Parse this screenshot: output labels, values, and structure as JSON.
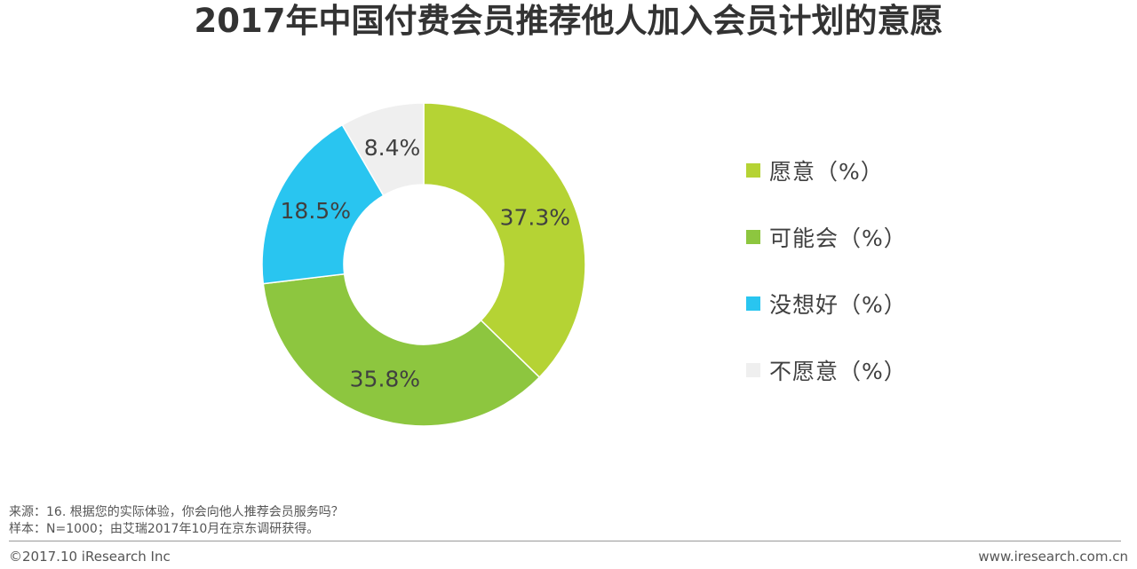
{
  "chart_data": {
    "type": "pie",
    "title": "2017年中国付费会员推荐他人加入会员计划的意愿",
    "categories": [
      "愿意（%）",
      "可能会（%）",
      "没想好（%）",
      "不愿意（%）"
    ],
    "values": [
      37.3,
      35.8,
      18.5,
      8.4
    ],
    "value_labels": [
      "37.3%",
      "35.8%",
      "18.5%",
      "8.4%"
    ],
    "colors": [
      "#b5d334",
      "#8dc63f",
      "#29c5f0",
      "#efefef"
    ],
    "donut": true,
    "legend_position": "right"
  },
  "footnote": {
    "source": "来源：16. 根据您的实际体验，你会向他人推荐会员服务吗？",
    "sample": "样本：N=1000；由艾瑞2017年10月在京东调研获得。"
  },
  "footer": {
    "copyright": "©2017.10 iResearch Inc",
    "website": "www.iresearch.com.cn"
  }
}
